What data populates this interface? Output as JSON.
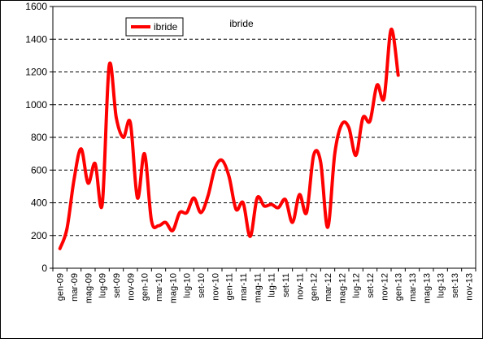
{
  "chart_data": {
    "type": "line",
    "title": "ibride",
    "xlabel": "",
    "ylabel": "",
    "ylim": [
      0,
      1600
    ],
    "yticks": [
      0,
      200,
      400,
      600,
      800,
      1000,
      1200,
      1400,
      1600
    ],
    "grid": "horizontal dashed",
    "legend_position": "top-left",
    "categories": [
      "gen-09",
      "mar-09",
      "mag-09",
      "lug-09",
      "set-09",
      "nov-09",
      "gen-10",
      "mar-10",
      "mag-10",
      "lug-10",
      "set-10",
      "nov-10",
      "gen-11",
      "mar-11",
      "mag-11",
      "lug-11",
      "set-11",
      "nov-11",
      "gen-12",
      "mar-12",
      "mag-12",
      "lug-12",
      "set-12",
      "nov-12",
      "gen-13",
      "mar-13",
      "mag-13",
      "lug-13",
      "set-13",
      "nov-13"
    ],
    "series": [
      {
        "name": "ibride",
        "color": "#ff0000",
        "x": [
          0.0,
          0.5,
          1.0,
          1.5,
          2.0,
          2.5,
          3.0,
          3.5,
          4.0,
          4.5,
          5.0,
          5.5,
          6.0,
          6.5,
          7.0,
          7.5,
          8.0,
          8.5,
          9.0,
          9.5,
          10.0,
          10.5,
          11.0,
          11.5,
          12.0,
          12.5,
          13.0,
          13.5,
          14.0,
          14.5,
          15.0,
          15.5,
          16.0,
          16.5,
          17.0,
          17.5,
          18.0,
          18.5,
          19.0,
          19.5,
          20.0,
          20.5,
          21.0,
          21.5,
          22.0,
          22.5,
          23.0,
          23.5,
          24.0,
          24.5,
          25.0,
          25.5,
          26.0,
          26.5
        ],
        "values": [
          120,
          240,
          540,
          730,
          520,
          640,
          390,
          1240,
          920,
          800,
          890,
          430,
          700,
          290,
          260,
          280,
          230,
          340,
          340,
          430,
          340,
          440,
          610,
          660,
          560,
          360,
          400,
          195,
          430,
          380,
          390,
          370,
          420,
          280,
          450,
          340,
          690,
          650,
          250,
          700,
          880,
          860,
          690,
          920,
          900,
          1120,
          1040,
          1460,
          1180,
          null,
          null,
          null,
          null,
          null
        ]
      }
    ]
  }
}
